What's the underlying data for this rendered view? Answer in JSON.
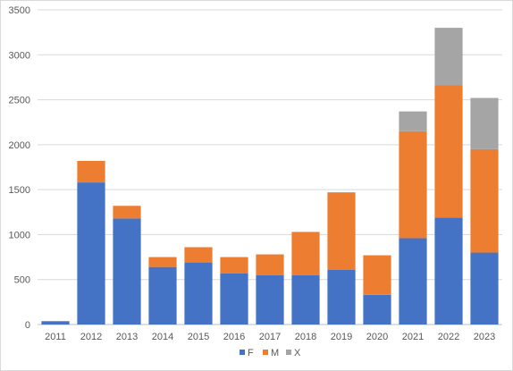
{
  "chart_data": {
    "type": "bar",
    "stacked": true,
    "categories": [
      "2011",
      "2012",
      "2013",
      "2014",
      "2015",
      "2016",
      "2017",
      "2018",
      "2019",
      "2020",
      "2021",
      "2022",
      "2023"
    ],
    "series": [
      {
        "name": "F",
        "color": "#4472C4",
        "values": [
          30,
          1580,
          1180,
          640,
          690,
          570,
          550,
          550,
          610,
          330,
          960,
          1190,
          800
        ]
      },
      {
        "name": "M",
        "color": "#ED7D31",
        "values": [
          10,
          240,
          140,
          110,
          170,
          180,
          230,
          480,
          860,
          440,
          1190,
          1470,
          1150
        ]
      },
      {
        "name": "X",
        "color": "#A5A5A5",
        "values": [
          0,
          0,
          0,
          0,
          0,
          0,
          0,
          0,
          0,
          0,
          220,
          640,
          570
        ]
      }
    ],
    "ylim": [
      0,
      3500
    ],
    "yticks": [
      0,
      500,
      1000,
      1500,
      2000,
      2500,
      3000,
      3500
    ],
    "grid": true,
    "legend_position": "bottom"
  }
}
